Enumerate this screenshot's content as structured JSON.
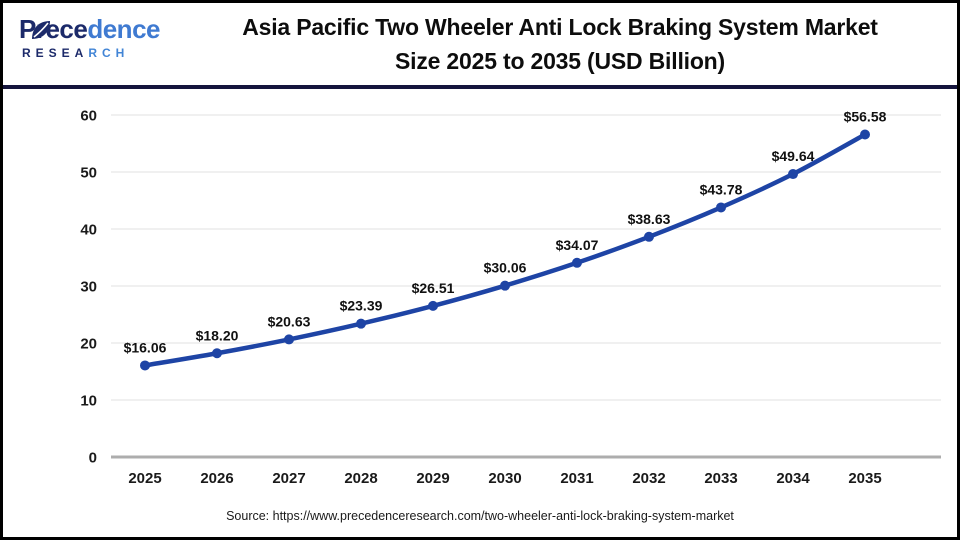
{
  "header": {
    "logo": {
      "brand_part1": "Prece",
      "brand_part2": "dence",
      "sub_part1": "RESEA",
      "sub_part2": "RCH"
    },
    "title_line1": "Asia Pacific Two Wheeler Anti Lock Braking System Market",
    "title_line2": "Size 2025 to 2035 (USD Billion)"
  },
  "footer": {
    "source": "Source: https://www.precedenceresearch.com/two-wheeler-anti-lock-braking-system-market"
  },
  "colors": {
    "line": "#1e44a5",
    "marker": "#1e44a5",
    "header_divider": "#15153d",
    "grid": "#ececec",
    "axis_baseline": "#adadad",
    "logo_dark": "#1c2a6a",
    "logo_light": "#4285d6"
  },
  "chart_data": {
    "type": "line",
    "title": "Asia Pacific Two Wheeler Anti Lock Braking System Market Size 2025 to 2035 (USD Billion)",
    "categories": [
      "2025",
      "2026",
      "2027",
      "2028",
      "2029",
      "2030",
      "2031",
      "2032",
      "2033",
      "2034",
      "2035"
    ],
    "values": [
      16.06,
      18.2,
      20.63,
      23.39,
      26.51,
      30.06,
      34.07,
      38.63,
      43.78,
      49.64,
      56.58
    ],
    "point_labels": [
      "$16.06",
      "$18.20",
      "$20.63",
      "$23.39",
      "$26.51",
      "$30.06",
      "$34.07",
      "$38.63",
      "$43.78",
      "$49.64",
      "$56.58"
    ],
    "xlabel": "",
    "ylabel": "",
    "ylim": [
      0,
      60
    ],
    "yticks": [
      0,
      10,
      20,
      30,
      40,
      50,
      60
    ],
    "grid": true,
    "legend": "none",
    "line_color": "#1e44a5",
    "marker_color": "#1e44a5"
  }
}
